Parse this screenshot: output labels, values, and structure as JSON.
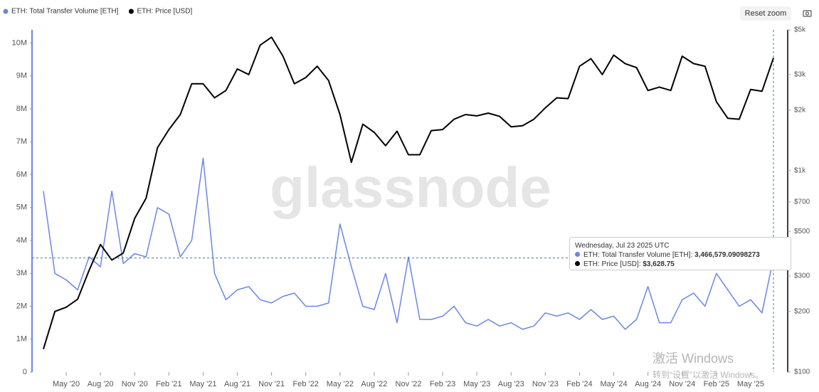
{
  "chart_data": {
    "type": "line",
    "x": [
      "2020-03",
      "2020-04",
      "2020-05",
      "2020-06",
      "2020-07",
      "2020-08",
      "2020-09",
      "2020-10",
      "2020-11",
      "2020-12",
      "2021-01",
      "2021-02",
      "2021-03",
      "2021-04",
      "2021-05",
      "2021-06",
      "2021-07",
      "2021-08",
      "2021-09",
      "2021-10",
      "2021-11",
      "2021-12",
      "2022-01",
      "2022-02",
      "2022-03",
      "2022-04",
      "2022-05",
      "2022-06",
      "2022-07",
      "2022-08",
      "2022-09",
      "2022-10",
      "2022-11",
      "2022-12",
      "2023-01",
      "2023-02",
      "2023-03",
      "2023-04",
      "2023-05",
      "2023-06",
      "2023-07",
      "2023-08",
      "2023-09",
      "2023-10",
      "2023-11",
      "2023-12",
      "2024-01",
      "2024-02",
      "2024-03",
      "2024-04",
      "2024-05",
      "2024-06",
      "2024-07",
      "2024-08",
      "2024-09",
      "2024-10",
      "2024-11",
      "2024-12",
      "2025-01",
      "2025-02",
      "2025-03",
      "2025-04",
      "2025-05",
      "2025-06",
      "2025-07"
    ],
    "series": [
      {
        "name": "ETH: Total Transfer Volume [ETH]",
        "color": "#6b86e8",
        "axis": "y",
        "values": [
          5500000,
          3000000,
          2800000,
          2500000,
          3500000,
          3200000,
          5500000,
          3300000,
          3600000,
          3500000,
          5000000,
          4800000,
          3500000,
          4000000,
          6500000,
          3000000,
          2200000,
          2500000,
          2600000,
          2200000,
          2100000,
          2300000,
          2400000,
          2000000,
          2000000,
          2100000,
          4500000,
          3200000,
          2000000,
          1900000,
          3000000,
          1500000,
          3500000,
          1600000,
          1600000,
          1700000,
          2000000,
          1500000,
          1400000,
          1600000,
          1400000,
          1500000,
          1300000,
          1400000,
          1800000,
          1700000,
          1800000,
          1600000,
          1900000,
          1600000,
          1700000,
          1300000,
          1600000,
          2600000,
          1500000,
          1500000,
          2200000,
          2400000,
          2000000,
          3000000,
          2500000,
          2000000,
          2200000,
          1800000,
          3466579
        ]
      },
      {
        "name": "ETH: Price [USD]",
        "color": "#000000",
        "axis": "y2",
        "values": [
          130,
          200,
          210,
          230,
          320,
          430,
          360,
          390,
          580,
          730,
          1300,
          1600,
          1900,
          2700,
          2700,
          2300,
          2500,
          3200,
          3000,
          4200,
          4600,
          3700,
          2700,
          2900,
          3300,
          2800,
          1900,
          1100,
          1700,
          1550,
          1330,
          1570,
          1200,
          1200,
          1580,
          1600,
          1800,
          1900,
          1870,
          1930,
          1860,
          1650,
          1670,
          1800,
          2050,
          2300,
          2280,
          3300,
          3600,
          3000,
          3750,
          3400,
          3250,
          2500,
          2600,
          2500,
          3700,
          3400,
          3300,
          2200,
          1820,
          1800,
          2530,
          2480,
          3630
        ]
      }
    ],
    "xlim": [
      "2020-02",
      "2025-08"
    ],
    "xticks": [
      {
        "value": "2020-05",
        "label": "May '20"
      },
      {
        "value": "2020-08",
        "label": "Aug '20"
      },
      {
        "value": "2020-11",
        "label": "Nov '20"
      },
      {
        "value": "2021-02",
        "label": "Feb '21"
      },
      {
        "value": "2021-05",
        "label": "May '21"
      },
      {
        "value": "2021-08",
        "label": "Aug '21"
      },
      {
        "value": "2021-11",
        "label": "Nov '21"
      },
      {
        "value": "2022-02",
        "label": "Feb '22"
      },
      {
        "value": "2022-05",
        "label": "May '22"
      },
      {
        "value": "2022-08",
        "label": "Aug '22"
      },
      {
        "value": "2022-11",
        "label": "Nov '22"
      },
      {
        "value": "2023-02",
        "label": "Feb '23"
      },
      {
        "value": "2023-05",
        "label": "May '23"
      },
      {
        "value": "2023-08",
        "label": "Aug '23"
      },
      {
        "value": "2023-11",
        "label": "Nov '23"
      },
      {
        "value": "2024-02",
        "label": "Feb '24"
      },
      {
        "value": "2024-05",
        "label": "May '24"
      },
      {
        "value": "2024-08",
        "label": "Aug '24"
      },
      {
        "value": "2024-11",
        "label": "Nov '24"
      },
      {
        "value": "2025-02",
        "label": "Feb '25"
      },
      {
        "value": "2025-05",
        "label": "May '25"
      }
    ],
    "ylim": [
      0,
      10400000
    ],
    "yticks": [
      0,
      {
        "value": 1000000,
        "label": "1M"
      },
      {
        "value": 2000000,
        "label": "2M"
      },
      {
        "value": 3000000,
        "label": "3M"
      },
      {
        "value": 4000000,
        "label": "4M"
      },
      {
        "value": 5000000,
        "label": "5M"
      },
      {
        "value": 6000000,
        "label": "6M"
      },
      {
        "value": 7000000,
        "label": "7M"
      },
      {
        "value": 8000000,
        "label": "8M"
      },
      {
        "value": 9000000,
        "label": "9M"
      },
      {
        "value": 10000000,
        "label": "10M"
      }
    ],
    "y2lim": [
      100,
      5000
    ],
    "y2scale": "log",
    "y2ticks": [
      {
        "value": 100,
        "label": "$100"
      },
      {
        "value": 200,
        "label": "$200"
      },
      {
        "value": 300,
        "label": "$300"
      },
      {
        "value": 500,
        "label": "$500"
      },
      {
        "value": 700,
        "label": "$700"
      },
      {
        "value": 1000,
        "label": "$1k"
      },
      {
        "value": 2000,
        "label": "$2k"
      },
      {
        "value": 3000,
        "label": "$3k"
      },
      {
        "value": 5000,
        "label": "$5k"
      }
    ],
    "tooltip": {
      "title": "Wednesday, Jul 23 2025 UTC",
      "rows": [
        {
          "series": "ETH: Total Transfer Volume [ETH]",
          "label": "3,466,579.09098273"
        },
        {
          "series": "ETH: Price [USD]",
          "label": "$3,628.75"
        }
      ]
    }
  },
  "ui": {
    "watermark": "glassnode",
    "reset_zoom": "Reset zoom",
    "activation": {
      "title": "激活 Windows",
      "hint": "转到“设置”以激活 Windows。"
    }
  }
}
